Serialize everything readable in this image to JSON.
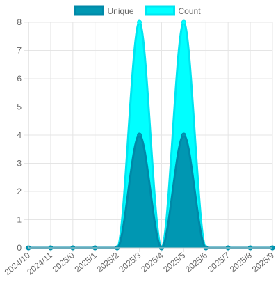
{
  "chart_data": {
    "type": "area",
    "categories": [
      "2024/10",
      "2024/11",
      "2025/0",
      "2025/1",
      "2025/2",
      "2025/3",
      "2025/4",
      "2025/5",
      "2025/6",
      "2025/7",
      "2025/8",
      "2025/9"
    ],
    "series": [
      {
        "name": "Unique",
        "values": [
          0,
          0,
          0,
          0,
          0,
          4,
          0,
          4,
          0,
          0,
          0,
          0
        ],
        "fill": "#0097b2",
        "border": "#0089a8"
      },
      {
        "name": "Count",
        "values": [
          0,
          0,
          0,
          0,
          0,
          8,
          0,
          8,
          0,
          0,
          0,
          0
        ],
        "fill": "#00ffff",
        "border": "#00e5f0"
      }
    ],
    "ylim": [
      0,
      8
    ],
    "yticks": [
      0,
      1,
      2,
      3,
      4,
      5,
      6,
      7,
      8
    ],
    "grid": true,
    "legend": "top-center"
  }
}
